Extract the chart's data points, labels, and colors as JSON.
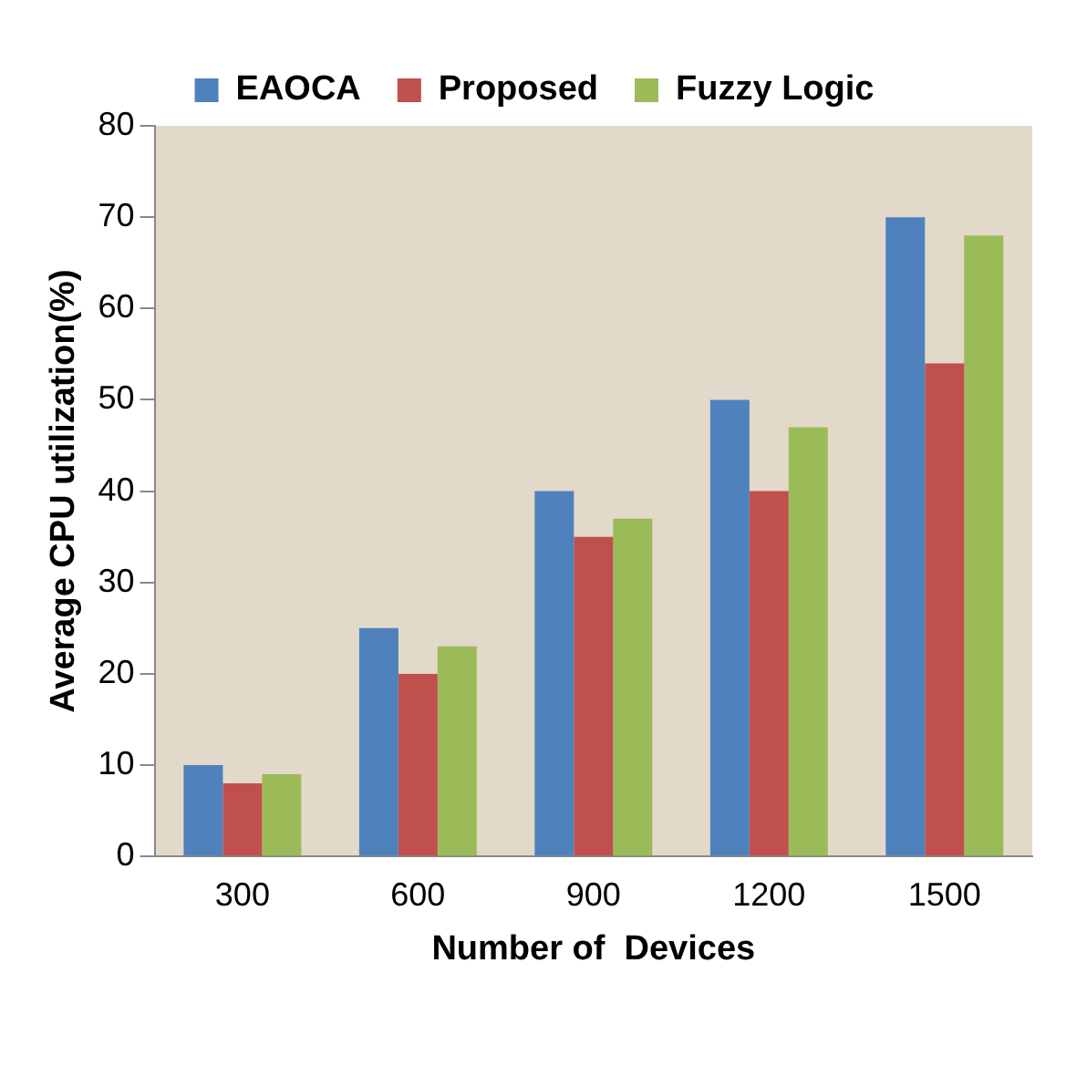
{
  "chart_data": {
    "type": "bar",
    "xlabel": "Number of  Devices",
    "ylabel": "Average CPU utilization(%)",
    "categories": [
      "300",
      "600",
      "900",
      "1200",
      "1500"
    ],
    "series": [
      {
        "name": "EAOCA",
        "color": "#4f81bd",
        "values": [
          10,
          25,
          40,
          50,
          70
        ]
      },
      {
        "name": "Proposed",
        "color": "#c0504d",
        "values": [
          8,
          20,
          35,
          40,
          54
        ]
      },
      {
        "name": "Fuzzy Logic",
        "color": "#9bbb59",
        "values": [
          9,
          23,
          37,
          47,
          68
        ]
      }
    ],
    "ylim": [
      0,
      80
    ],
    "yticks": [
      0,
      10,
      20,
      30,
      40,
      50,
      60,
      70,
      80
    ],
    "grid": false,
    "legend": "top"
  }
}
